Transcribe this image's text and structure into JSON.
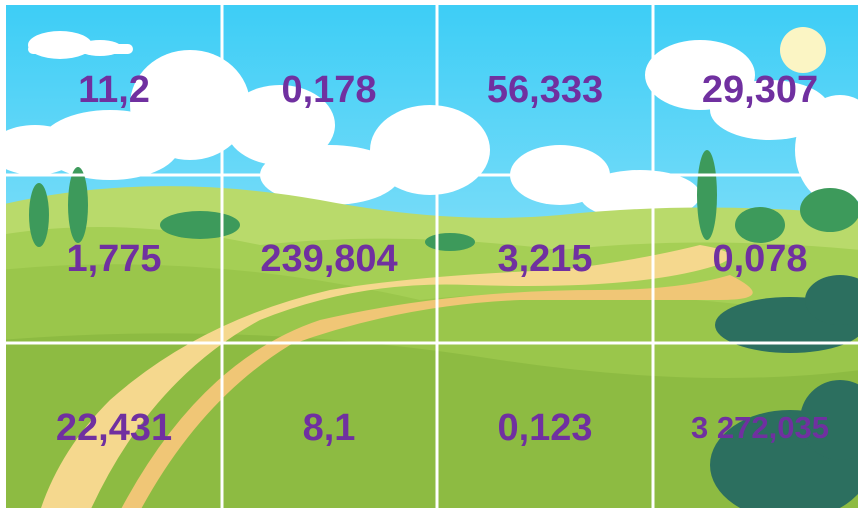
{
  "grid": {
    "rows": [
      [
        "11,2",
        "0,178",
        "56,333",
        "29,307"
      ],
      [
        "1,775",
        "239,804",
        "3,215",
        "0,078"
      ],
      [
        "22,431",
        "8,1",
        "0,123",
        "3 272,035"
      ]
    ]
  }
}
